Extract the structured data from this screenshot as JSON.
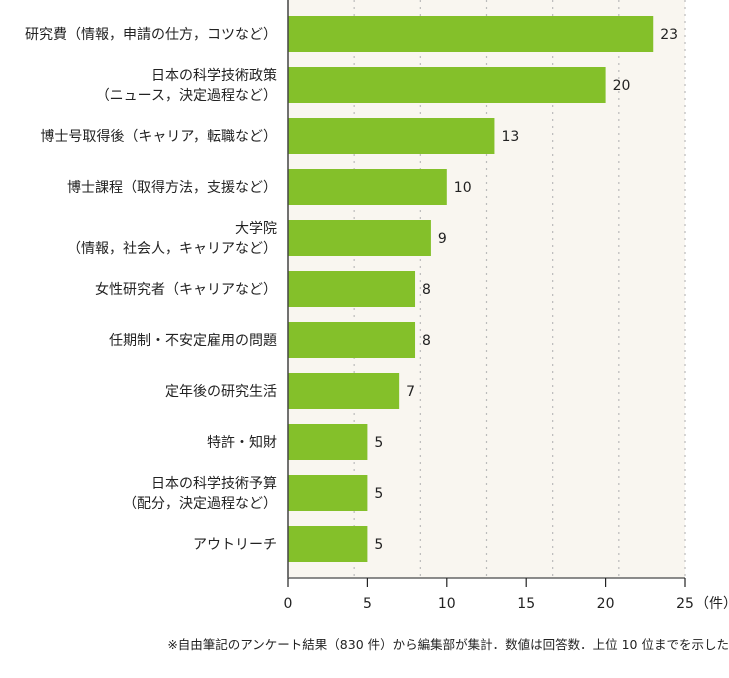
{
  "chart_data": {
    "type": "bar",
    "orientation": "horizontal",
    "categories": [
      [
        "研究費（情報，申請の仕方，コツなど）"
      ],
      [
        "日本の科学技術政策",
        "（ニュース，決定過程など）"
      ],
      [
        "博士号取得後（キャリア，転職など）"
      ],
      [
        "博士課程（取得方法，支援など）"
      ],
      [
        "大学院",
        "（情報，社会人，キャリアなど）"
      ],
      [
        "女性研究者（キャリアなど）"
      ],
      [
        "任期制・不安定雇用の問題"
      ],
      [
        "定年後の研究生活"
      ],
      [
        "特許・知財"
      ],
      [
        "日本の科学技術予算",
        "（配分，決定過程など）"
      ],
      [
        "アウトリーチ"
      ]
    ],
    "values": [
      23,
      20,
      13,
      10,
      9,
      8,
      8,
      7,
      5,
      5,
      5
    ],
    "xlim": [
      0,
      25
    ],
    "xticks": [
      "0",
      "5",
      "10",
      "15",
      "20",
      "25"
    ],
    "xunit": "（件）",
    "grid": "vertical dotted",
    "bar_color": "#84c02a",
    "plot_background": "#f9f6f0",
    "note": "※自由筆記のアンケート結果（830 件）から編集部が集計．数値は回答数．上位 10 位までを示した"
  }
}
